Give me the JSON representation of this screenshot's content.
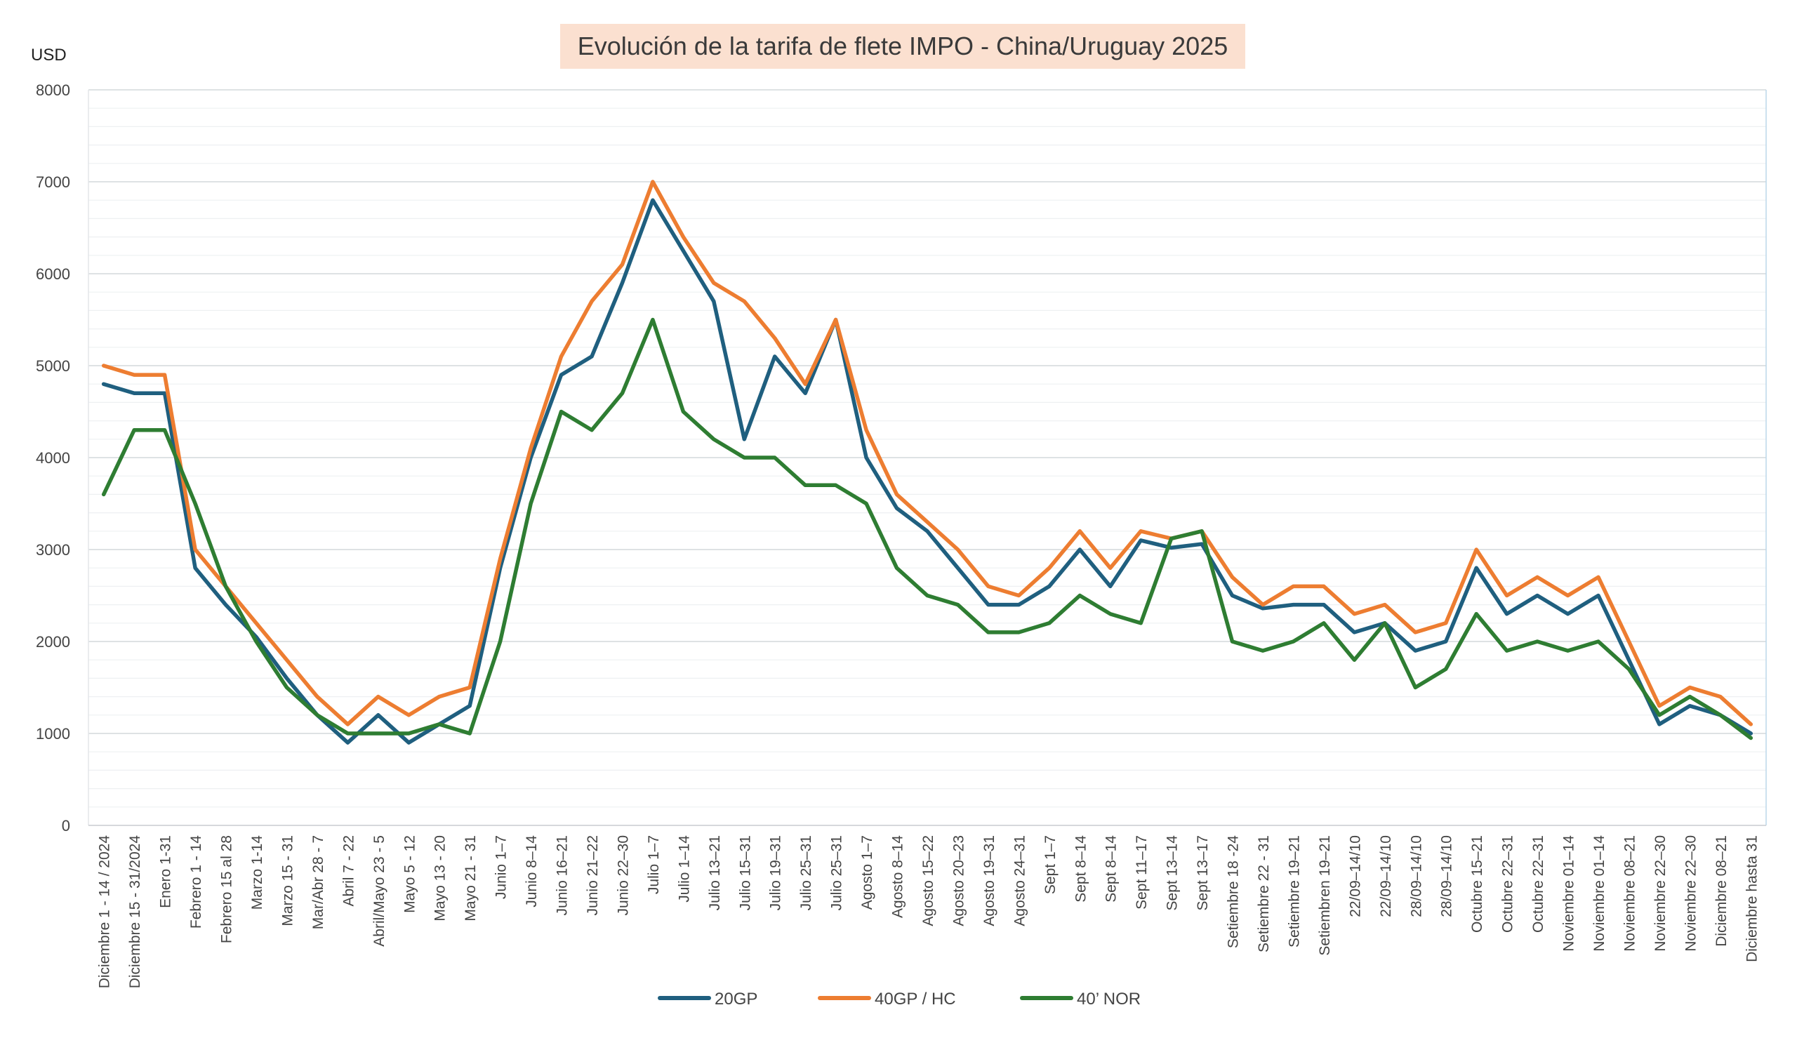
{
  "chart_data": {
    "type": "line",
    "title": "Evolución de la tarifa de flete IMPO - China/Uruguay 2025",
    "ylabel": "USD",
    "xlabel": "",
    "ylim": [
      0,
      8000
    ],
    "yticks": [
      0,
      1000,
      2000,
      3000,
      4000,
      5000,
      6000,
      7000,
      8000
    ],
    "grid": true,
    "legend_position": "bottom",
    "categories": [
      "Diciembre 1 - 14 / 2024",
      "Diciembre 15 - 31/2024",
      "Enero 1-31",
      "Febrero 1 - 14",
      "Febrero 15 al 28",
      "Marzo 1-14",
      "Marzo 15 - 31",
      "Mar/Abr 28 - 7",
      "Abril 7 - 22",
      "Abril/Mayo 23 - 5",
      "Mayo 5 - 12",
      "Mayo 13 - 20",
      "Mayo 21 - 31",
      "Junio 1–7",
      "Junio 8–14",
      "Junio 16–21",
      "Junio 21–22",
      "Junio 22–30",
      "Julio 1–7",
      "Julio 1–14",
      "Julio 13–21",
      "Julio 15–31",
      "Julio 19–31",
      "Julio 25–31",
      "Julio 25–31",
      "Agosto 1–7",
      "Agosto 8–14",
      "Agosto 15–22",
      "Agosto 20–23",
      "Agosto 19–31",
      "Agosto 24–31",
      "Sept 1–7",
      "Sept 8–14",
      "Sept 8–14",
      "Sept 11–17",
      "Sept 13–14",
      "Sept 13–17",
      "Setiembre 18 -24",
      "Setiembre 22 - 31",
      "Setiembre 19–21",
      "Setiembren 19–21",
      "22/09–14/10",
      "22/09–14/10",
      "28/09–14/10",
      "28/09–14/10",
      "Octubre 15–21",
      "Octubre 22–31",
      "Octubre 22–31",
      "Noviembre 01–14",
      "Noviembre 01–14",
      "Noviembre 08–21",
      "Noviembre 22–30",
      "Noviembre 22–30",
      "Diciembre 08–21",
      "Diciembre hasta 31"
    ],
    "series": [
      {
        "name": "20GP",
        "color": "#1f5f7f",
        "values": [
          4800,
          4700,
          4700,
          2800,
          2400,
          2050,
          1600,
          1200,
          900,
          1200,
          900,
          1100,
          1300,
          2800,
          4000,
          4900,
          5100,
          5900,
          6800,
          6250,
          5700,
          4200,
          5100,
          4700,
          5500,
          4000,
          3450,
          3200,
          2800,
          2400,
          2400,
          2600,
          3000,
          2600,
          3100,
          3020,
          3060,
          2500,
          2360,
          2400,
          2400,
          2100,
          2200,
          1900,
          2000,
          2800,
          2300,
          2500,
          2300,
          2500,
          1800,
          1100,
          1300,
          1200,
          1000
        ]
      },
      {
        "name": "40GP / HC",
        "color": "#ed7d31",
        "values": [
          5000,
          4900,
          4900,
          3000,
          2600,
          2200,
          1800,
          1400,
          1100,
          1400,
          1200,
          1400,
          1500,
          2900,
          4100,
          5100,
          5700,
          6100,
          7000,
          6400,
          5900,
          5700,
          5300,
          4800,
          5500,
          4300,
          3600,
          3300,
          3000,
          2600,
          2500,
          2800,
          3200,
          2800,
          3200,
          3120,
          3200,
          2700,
          2400,
          2600,
          2600,
          2300,
          2400,
          2100,
          2200,
          3000,
          2500,
          2700,
          2500,
          2700,
          2000,
          1300,
          1500,
          1400,
          1100
        ]
      },
      {
        "name": "40’ NOR",
        "color": "#2e7d32",
        "values": [
          3600,
          4300,
          4300,
          3500,
          2600,
          2000,
          1500,
          1200,
          1000,
          1000,
          1000,
          1100,
          1000,
          2000,
          3500,
          4500,
          4300,
          4700,
          5500,
          4500,
          4200,
          4000,
          4000,
          3700,
          3700,
          3500,
          2800,
          2500,
          2400,
          2100,
          2100,
          2200,
          2500,
          2300,
          2200,
          3120,
          3200,
          2000,
          1900,
          2000,
          2200,
          1800,
          2200,
          1500,
          1700,
          2300,
          1900,
          2000,
          1900,
          2000,
          1700,
          1200,
          1400,
          1200,
          950
        ]
      }
    ]
  }
}
